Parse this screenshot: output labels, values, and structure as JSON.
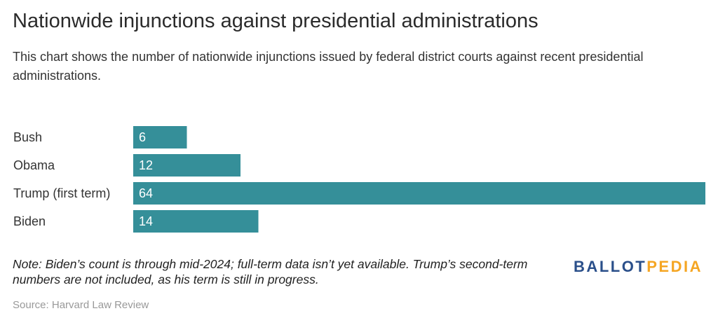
{
  "header": {
    "title": "Nationwide injunctions against presidential administrations",
    "subtitle": "This chart shows the number of nationwide injunctions issued by federal district courts against recent presidential administrations."
  },
  "chart_data": {
    "type": "bar",
    "orientation": "horizontal",
    "categories": [
      "Bush",
      "Obama",
      "Trump (first term)",
      "Biden"
    ],
    "values": [
      6,
      12,
      64,
      14
    ],
    "xlim": [
      0,
      64
    ],
    "grid": false,
    "legend": "none",
    "bar_color": "#358f99",
    "label_color": "#ffffff"
  },
  "footer": {
    "note": "Note: Biden’s count is through mid-2024; full-term data isn’t yet available. Trump’s second-term numbers are not included, as his term is still in progress.",
    "source": "Source: Harvard Law Review"
  },
  "logo": {
    "part1": "BALLOT",
    "part2": "PEDIA",
    "color1": "#2a4f8a",
    "color2": "#f5a623"
  }
}
